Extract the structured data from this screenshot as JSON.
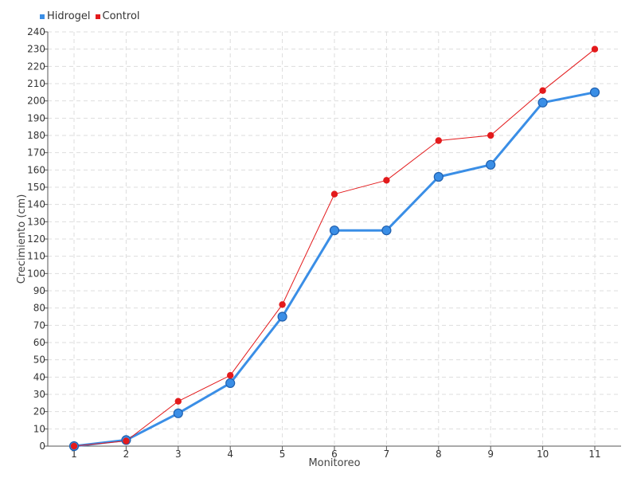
{
  "chart_data": {
    "type": "line",
    "title": "",
    "xlabel": "Monitoreo",
    "ylabel": "Crecimiento (cm)",
    "x": [
      "1",
      "2",
      "3",
      "4",
      "5",
      "6",
      "7",
      "8",
      "9",
      "10",
      "11"
    ],
    "ylim": [
      0,
      240
    ],
    "ytick_step": 10,
    "grid": true,
    "legend_position": "top-left",
    "series": [
      {
        "name": "Hidrogel",
        "color": "#3a8ee6",
        "values": [
          0,
          3.5,
          19,
          36.5,
          75,
          125,
          125,
          156,
          163,
          199,
          205
        ]
      },
      {
        "name": "Control",
        "color": "#e31a1c",
        "values": [
          0,
          3,
          26,
          41,
          82,
          146,
          154,
          177,
          180,
          206,
          230
        ]
      }
    ]
  }
}
